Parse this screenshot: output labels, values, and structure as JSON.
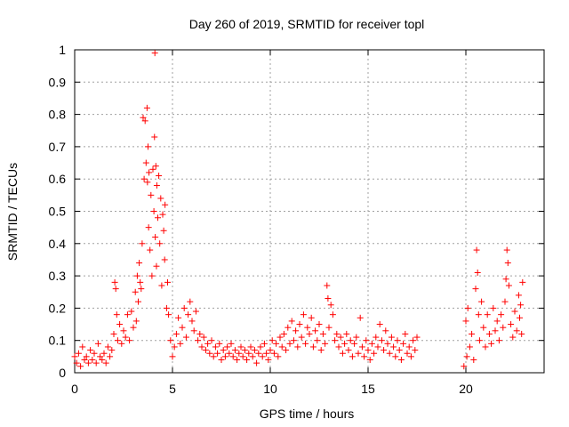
{
  "chart_data": {
    "type": "scatter",
    "title": "Day 260 of 2019, SRMTID for receiver topl",
    "xlabel": "GPS time / hours",
    "ylabel": "SRMTID / TECUs",
    "xlim": [
      0,
      24
    ],
    "ylim": [
      0,
      1
    ],
    "xticks": [
      0,
      5,
      10,
      15,
      20
    ],
    "yticks": [
      0,
      0.1,
      0.2,
      0.3,
      0.4,
      0.5,
      0.6,
      0.7,
      0.8,
      0.9,
      1
    ],
    "xtick_labels": [
      "0",
      "5",
      "10",
      "15",
      "20"
    ],
    "ytick_labels": [
      "0",
      "0.1",
      "0.2",
      "0.3",
      "0.4",
      "0.5",
      "0.6",
      "0.7",
      "0.8",
      "0.9",
      "1"
    ],
    "grid": true,
    "marker": "+",
    "color": "#ff0000",
    "series": [
      {
        "name": "SRMTID",
        "points": [
          [
            0.0,
            0.05
          ],
          [
            0.1,
            0.03
          ],
          [
            0.2,
            0.06
          ],
          [
            0.3,
            0.02
          ],
          [
            0.4,
            0.08
          ],
          [
            0.5,
            0.04
          ],
          [
            0.6,
            0.05
          ],
          [
            0.7,
            0.03
          ],
          [
            0.8,
            0.07
          ],
          [
            0.9,
            0.04
          ],
          [
            1.0,
            0.06
          ],
          [
            1.1,
            0.03
          ],
          [
            1.2,
            0.09
          ],
          [
            1.3,
            0.05
          ],
          [
            1.4,
            0.04
          ],
          [
            1.5,
            0.06
          ],
          [
            1.6,
            0.03
          ],
          [
            1.7,
            0.08
          ],
          [
            1.8,
            0.05
          ],
          [
            1.9,
            0.07
          ],
          [
            2.0,
            0.12
          ],
          [
            2.05,
            0.28
          ],
          [
            2.1,
            0.26
          ],
          [
            2.15,
            0.18
          ],
          [
            2.2,
            0.1
          ],
          [
            2.3,
            0.15
          ],
          [
            2.4,
            0.09
          ],
          [
            2.5,
            0.13
          ],
          [
            2.6,
            0.11
          ],
          [
            2.7,
            0.18
          ],
          [
            2.8,
            0.1
          ],
          [
            2.9,
            0.19
          ],
          [
            3.0,
            0.14
          ],
          [
            3.1,
            0.25
          ],
          [
            3.15,
            0.16
          ],
          [
            3.2,
            0.3
          ],
          [
            3.25,
            0.22
          ],
          [
            3.3,
            0.34
          ],
          [
            3.35,
            0.28
          ],
          [
            3.4,
            0.26
          ],
          [
            3.45,
            0.4
          ],
          [
            3.5,
            0.79
          ],
          [
            3.55,
            0.6
          ],
          [
            3.6,
            0.78
          ],
          [
            3.65,
            0.65
          ],
          [
            3.7,
            0.82
          ],
          [
            3.72,
            0.59
          ],
          [
            3.75,
            0.7
          ],
          [
            3.78,
            0.45
          ],
          [
            3.8,
            0.62
          ],
          [
            3.85,
            0.38
          ],
          [
            3.9,
            0.55
          ],
          [
            3.95,
            0.3
          ],
          [
            4.0,
            0.63
          ],
          [
            4.05,
            0.5
          ],
          [
            4.08,
            0.73
          ],
          [
            4.1,
            0.99
          ],
          [
            4.12,
            0.42
          ],
          [
            4.15,
            0.64
          ],
          [
            4.18,
            0.33
          ],
          [
            4.2,
            0.58
          ],
          [
            4.25,
            0.48
          ],
          [
            4.3,
            0.61
          ],
          [
            4.35,
            0.4
          ],
          [
            4.4,
            0.54
          ],
          [
            4.45,
            0.27
          ],
          [
            4.5,
            0.49
          ],
          [
            4.55,
            0.44
          ],
          [
            4.6,
            0.35
          ],
          [
            4.62,
            0.52
          ],
          [
            4.7,
            0.2
          ],
          [
            4.75,
            0.28
          ],
          [
            4.8,
            0.18
          ],
          [
            4.9,
            0.1
          ],
          [
            5.0,
            0.05
          ],
          [
            5.1,
            0.08
          ],
          [
            5.2,
            0.12
          ],
          [
            5.3,
            0.17
          ],
          [
            5.4,
            0.09
          ],
          [
            5.5,
            0.14
          ],
          [
            5.6,
            0.2
          ],
          [
            5.7,
            0.11
          ],
          [
            5.8,
            0.18
          ],
          [
            5.9,
            0.22
          ],
          [
            6.0,
            0.16
          ],
          [
            6.1,
            0.13
          ],
          [
            6.2,
            0.19
          ],
          [
            6.3,
            0.1
          ],
          [
            6.4,
            0.12
          ],
          [
            6.5,
            0.08
          ],
          [
            6.6,
            0.11
          ],
          [
            6.7,
            0.07
          ],
          [
            6.8,
            0.09
          ],
          [
            6.9,
            0.06
          ],
          [
            7.0,
            0.1
          ],
          [
            7.1,
            0.05
          ],
          [
            7.2,
            0.08
          ],
          [
            7.3,
            0.06
          ],
          [
            7.4,
            0.09
          ],
          [
            7.5,
            0.04
          ],
          [
            7.6,
            0.07
          ],
          [
            7.7,
            0.05
          ],
          [
            7.8,
            0.08
          ],
          [
            7.9,
            0.06
          ],
          [
            8.0,
            0.09
          ],
          [
            8.1,
            0.05
          ],
          [
            8.2,
            0.07
          ],
          [
            8.3,
            0.04
          ],
          [
            8.4,
            0.06
          ],
          [
            8.5,
            0.08
          ],
          [
            8.6,
            0.05
          ],
          [
            8.7,
            0.07
          ],
          [
            8.8,
            0.04
          ],
          [
            8.9,
            0.06
          ],
          [
            9.0,
            0.08
          ],
          [
            9.1,
            0.05
          ],
          [
            9.2,
            0.07
          ],
          [
            9.3,
            0.03
          ],
          [
            9.4,
            0.06
          ],
          [
            9.5,
            0.08
          ],
          [
            9.6,
            0.05
          ],
          [
            9.7,
            0.09
          ],
          [
            9.8,
            0.06
          ],
          [
            9.9,
            0.04
          ],
          [
            10.0,
            0.07
          ],
          [
            10.1,
            0.1
          ],
          [
            10.2,
            0.06
          ],
          [
            10.3,
            0.09
          ],
          [
            10.4,
            0.05
          ],
          [
            10.5,
            0.11
          ],
          [
            10.6,
            0.08
          ],
          [
            10.7,
            0.12
          ],
          [
            10.8,
            0.07
          ],
          [
            10.9,
            0.14
          ],
          [
            11.0,
            0.09
          ],
          [
            11.1,
            0.16
          ],
          [
            11.2,
            0.1
          ],
          [
            11.3,
            0.13
          ],
          [
            11.4,
            0.08
          ],
          [
            11.5,
            0.15
          ],
          [
            11.6,
            0.11
          ],
          [
            11.7,
            0.18
          ],
          [
            11.8,
            0.09
          ],
          [
            11.9,
            0.14
          ],
          [
            12.0,
            0.12
          ],
          [
            12.1,
            0.17
          ],
          [
            12.2,
            0.08
          ],
          [
            12.3,
            0.13
          ],
          [
            12.4,
            0.1
          ],
          [
            12.5,
            0.15
          ],
          [
            12.6,
            0.07
          ],
          [
            12.7,
            0.12
          ],
          [
            12.8,
            0.09
          ],
          [
            12.9,
            0.27
          ],
          [
            12.95,
            0.23
          ],
          [
            13.0,
            0.14
          ],
          [
            13.1,
            0.21
          ],
          [
            13.2,
            0.18
          ],
          [
            13.3,
            0.1
          ],
          [
            13.4,
            0.12
          ],
          [
            13.5,
            0.08
          ],
          [
            13.6,
            0.11
          ],
          [
            13.7,
            0.06
          ],
          [
            13.8,
            0.09
          ],
          [
            13.9,
            0.12
          ],
          [
            14.0,
            0.07
          ],
          [
            14.1,
            0.1
          ],
          [
            14.2,
            0.05
          ],
          [
            14.3,
            0.09
          ],
          [
            14.4,
            0.11
          ],
          [
            14.5,
            0.06
          ],
          [
            14.6,
            0.17
          ],
          [
            14.7,
            0.08
          ],
          [
            14.8,
            0.05
          ],
          [
            14.9,
            0.1
          ],
          [
            15.0,
            0.07
          ],
          [
            15.1,
            0.04
          ],
          [
            15.2,
            0.09
          ],
          [
            15.3,
            0.06
          ],
          [
            15.4,
            0.11
          ],
          [
            15.5,
            0.08
          ],
          [
            15.6,
            0.15
          ],
          [
            15.7,
            0.1
          ],
          [
            15.8,
            0.07
          ],
          [
            15.9,
            0.13
          ],
          [
            16.0,
            0.09
          ],
          [
            16.1,
            0.06
          ],
          [
            16.2,
            0.11
          ],
          [
            16.3,
            0.08
          ],
          [
            16.4,
            0.05
          ],
          [
            16.5,
            0.1
          ],
          [
            16.6,
            0.07
          ],
          [
            16.7,
            0.04
          ],
          [
            16.8,
            0.09
          ],
          [
            16.9,
            0.12
          ],
          [
            17.0,
            0.06
          ],
          [
            17.1,
            0.08
          ],
          [
            17.2,
            0.05
          ],
          [
            17.3,
            0.1
          ],
          [
            17.4,
            0.07
          ],
          [
            17.5,
            0.11
          ],
          [
            19.9,
            0.02
          ],
          [
            20.0,
            0.16
          ],
          [
            20.05,
            0.05
          ],
          [
            20.1,
            0.2
          ],
          [
            20.2,
            0.08
          ],
          [
            20.3,
            0.12
          ],
          [
            20.4,
            0.04
          ],
          [
            20.5,
            0.26
          ],
          [
            20.55,
            0.38
          ],
          [
            20.6,
            0.31
          ],
          [
            20.65,
            0.18
          ],
          [
            20.7,
            0.1
          ],
          [
            20.8,
            0.22
          ],
          [
            20.9,
            0.14
          ],
          [
            21.0,
            0.08
          ],
          [
            21.1,
            0.18
          ],
          [
            21.2,
            0.12
          ],
          [
            21.3,
            0.09
          ],
          [
            21.4,
            0.2
          ],
          [
            21.5,
            0.13
          ],
          [
            21.6,
            0.16
          ],
          [
            21.7,
            0.1
          ],
          [
            21.8,
            0.18
          ],
          [
            21.9,
            0.14
          ],
          [
            22.0,
            0.22
          ],
          [
            22.05,
            0.29
          ],
          [
            22.1,
            0.38
          ],
          [
            22.15,
            0.34
          ],
          [
            22.2,
            0.27
          ],
          [
            22.3,
            0.15
          ],
          [
            22.4,
            0.11
          ],
          [
            22.5,
            0.19
          ],
          [
            22.6,
            0.13
          ],
          [
            22.7,
            0.24
          ],
          [
            22.75,
            0.17
          ],
          [
            22.8,
            0.21
          ],
          [
            22.85,
            0.12
          ],
          [
            22.9,
            0.28
          ]
        ]
      }
    ]
  }
}
